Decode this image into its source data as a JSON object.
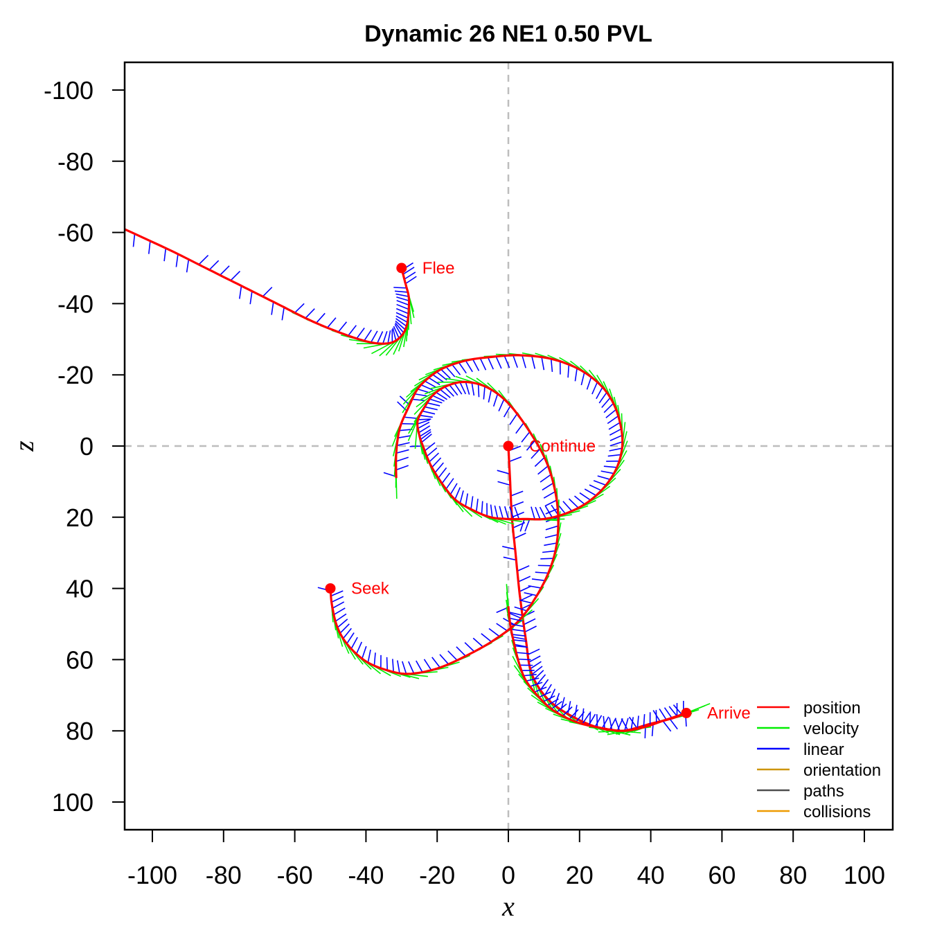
{
  "chart_data": {
    "type": "line",
    "title": "Dynamic 26 NE1 0.50 PVL",
    "xlabel": "x",
    "ylabel": "z",
    "xlim": [
      -108,
      108
    ],
    "ylim": [
      -108,
      108
    ],
    "y_inverted": true,
    "x_ticks": [
      -100,
      -80,
      -60,
      -40,
      -20,
      0,
      20,
      40,
      60,
      80,
      100
    ],
    "y_ticks": [
      -100,
      -80,
      -60,
      -40,
      -20,
      0,
      20,
      40,
      60,
      80,
      100
    ],
    "reference_lines": {
      "x": 0,
      "z": 0,
      "style": "dashed",
      "color": "#bdbdbd"
    },
    "colors": {
      "position": "#ff0000",
      "velocity": "#00ee00",
      "linear": "#0000ff",
      "orientation": "#cd950c",
      "paths": "#4d4d4d",
      "collisions": "#ee9a00"
    },
    "legend": {
      "placement": "bottom-right",
      "entries": [
        "position",
        "velocity",
        "linear",
        "orientation",
        "paths",
        "collisions"
      ]
    },
    "agents": [
      {
        "name": "Flee",
        "start": [
          -30,
          -50
        ],
        "path": [
          [
            -30,
            -50
          ],
          [
            -29,
            -46
          ],
          [
            -28,
            -42
          ],
          [
            -28,
            -38
          ],
          [
            -28.5,
            -34
          ],
          [
            -30,
            -31
          ],
          [
            -33,
            -29
          ],
          [
            -38,
            -29
          ],
          [
            -45,
            -31
          ],
          [
            -55,
            -35
          ],
          [
            -65,
            -40
          ],
          [
            -75,
            -45
          ],
          [
            -85,
            -50
          ],
          [
            -95,
            -55
          ],
          [
            -108,
            -61
          ]
        ]
      },
      {
        "name": "Continue",
        "start": [
          0,
          0
        ],
        "path": [
          [
            0,
            0
          ],
          [
            0.5,
            10
          ],
          [
            1,
            20
          ],
          [
            2,
            30
          ],
          [
            3,
            40
          ],
          [
            4,
            48
          ],
          [
            5,
            55
          ],
          [
            6,
            62
          ],
          [
            8,
            67
          ],
          [
            12,
            72
          ],
          [
            18,
            76
          ],
          [
            25,
            79
          ],
          [
            32,
            80
          ],
          [
            40,
            78
          ],
          [
            46,
            76.5
          ],
          [
            50,
            75
          ]
        ]
      },
      {
        "name": "Seek",
        "start": [
          -50,
          40
        ],
        "path": [
          [
            -50,
            40
          ],
          [
            -49.5,
            45
          ],
          [
            -48,
            51
          ],
          [
            -45,
            56
          ],
          [
            -40,
            60.5
          ],
          [
            -34,
            63
          ],
          [
            -28,
            64
          ],
          [
            -20,
            62.5
          ],
          [
            -12,
            59
          ],
          [
            -4,
            54.5
          ],
          [
            3,
            49
          ],
          [
            8,
            42
          ],
          [
            11.5,
            35
          ],
          [
            13.5,
            28
          ],
          [
            14,
            20
          ],
          [
            13,
            12
          ],
          [
            10.5,
            4
          ],
          [
            6,
            -4
          ],
          [
            0,
            -12
          ],
          [
            -6,
            -16.5
          ],
          [
            -12,
            -18
          ],
          [
            -17,
            -17
          ],
          [
            -21,
            -14.5
          ],
          [
            -23.5,
            -11
          ],
          [
            -25.5,
            -7
          ],
          [
            -25,
            -3
          ],
          [
            -24,
            0
          ],
          [
            -22,
            5
          ],
          [
            -19,
            10
          ],
          [
            -15,
            15
          ],
          [
            -10,
            18
          ],
          [
            -5,
            20
          ],
          [
            0,
            20.5
          ],
          [
            5,
            20.5
          ],
          [
            10,
            20.5
          ],
          [
            16,
            19
          ],
          [
            22,
            16
          ],
          [
            27,
            11.5
          ],
          [
            30.5,
            6
          ],
          [
            32,
            0
          ],
          [
            31.5,
            -6
          ],
          [
            29.5,
            -12
          ],
          [
            26,
            -17
          ],
          [
            20,
            -21.5
          ],
          [
            12,
            -24.5
          ],
          [
            3,
            -25.5
          ],
          [
            -5,
            -25
          ],
          [
            -12,
            -24
          ],
          [
            -18,
            -22
          ],
          [
            -22,
            -19.5
          ],
          [
            -25.5,
            -16
          ],
          [
            -28,
            -11
          ],
          [
            -30.5,
            -5
          ],
          [
            -31.5,
            2
          ],
          [
            -31.5,
            9
          ]
        ]
      },
      {
        "name": "Arrive",
        "start": [
          50,
          75
        ],
        "path": [
          [
            50,
            75
          ],
          [
            44,
            77
          ],
          [
            38,
            79
          ],
          [
            32,
            80
          ],
          [
            25,
            79
          ],
          [
            19,
            77.5
          ],
          [
            13,
            74.5
          ],
          [
            9,
            71
          ],
          [
            5,
            66
          ],
          [
            3,
            61
          ],
          [
            1.5,
            55
          ],
          [
            0.5,
            50
          ],
          [
            0,
            45
          ]
        ]
      }
    ]
  }
}
